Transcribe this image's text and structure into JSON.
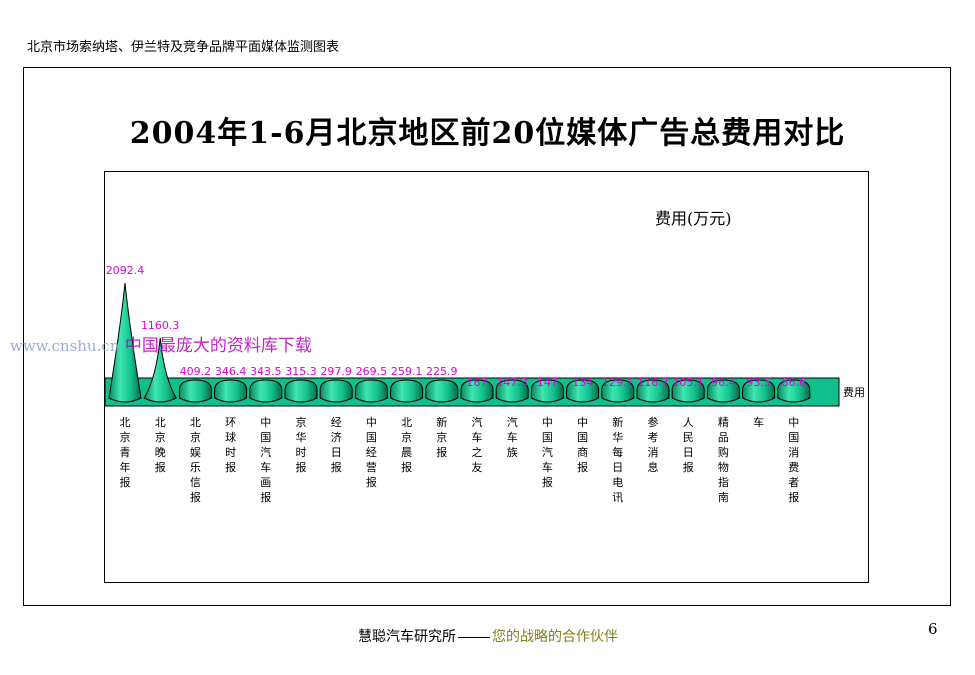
{
  "header": {
    "text": "北京市场索纳塔、伊兰特及竞争品牌平面媒体监测图表"
  },
  "footer": {
    "org": "慧聪汽车研究所",
    "slogan": "您的战略的合作伙伴"
  },
  "page_number": "6",
  "watermark": {
    "url": "www.cnshu.cn",
    "text": "中国最庞大的资料库下载"
  },
  "chart_data": {
    "type": "bar",
    "title": "2004年1-6月北京地区前20位媒体广告总费用对比",
    "unit_label": "费用(万元)",
    "series": [
      {
        "name": "费用",
        "values": [
          2092.4,
          1160.3,
          409.2,
          346.4,
          343.5,
          315.3,
          297.9,
          269.5,
          259.1,
          225.9,
          167,
          147.3,
          147,
          134,
          129.1,
          116.7,
          105.1,
          96.4,
          93.5,
          86.6
        ]
      }
    ],
    "categories": [
      "北京青年报",
      "北京晚报",
      "北京娱乐信报",
      "环球时报",
      "中国汽车画报",
      "京华时报",
      "经济日报",
      "中国经营报",
      "北京晨报",
      "新京报",
      "汽车之友",
      "汽车族",
      "中国汽车报",
      "中国商报",
      "新华每日电讯",
      "参考消息",
      "人民日报",
      "精品购物指南",
      "车",
      "中国消费者报"
    ],
    "value_labels": [
      "2092.4",
      "1160.3",
      "409.2",
      "346.4",
      "343.5",
      "315.3",
      "297.9",
      "269.5",
      "259.1",
      "225.9",
      "167",
      "147.3",
      "147",
      "134",
      "129.1",
      "116.7",
      "105.1",
      "96.4",
      "93.5",
      "86.6"
    ],
    "colors": {
      "bar": "#10c08c",
      "bar_dark": "#066a4a",
      "label": "#e000e0"
    },
    "legend": "right"
  }
}
